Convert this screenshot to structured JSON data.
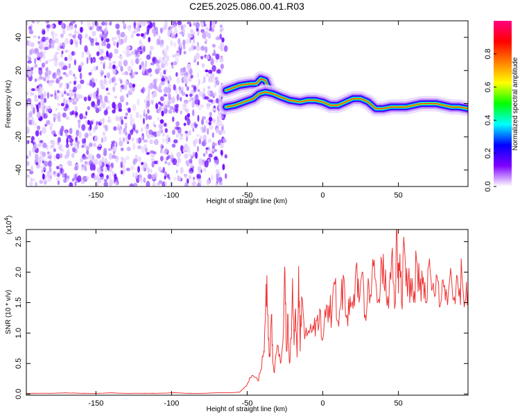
{
  "chart_data": [
    {
      "type": "heatmap",
      "title": "C2E5.2025.086.00.41.R03",
      "xlabel": "Height of straight line (km)",
      "ylabel": "Frequency (Hz)",
      "xlim": [
        -196,
        96
      ],
      "ylim": [
        -50,
        50
      ],
      "x_ticks": [
        -150,
        -100,
        -50,
        0,
        50
      ],
      "y_ticks": [
        -40,
        -20,
        0,
        20,
        40
      ],
      "grid": false,
      "noise_region_x": [
        -196,
        -64
      ],
      "ridges": [
        {
          "name": "",
          "points": [
            [
              -64,
              8
            ],
            [
              -55,
              11
            ],
            [
              -48,
              12
            ],
            [
              -44,
              12
            ],
            [
              -41,
              15
            ],
            [
              -38,
              14
            ],
            [
              -35,
              7
            ]
          ]
        },
        {
          "name": "",
          "points": [
            [
              -64,
              -2
            ],
            [
              -58,
              -1
            ],
            [
              -52,
              1
            ],
            [
              -46,
              3
            ],
            [
              -42,
              6
            ],
            [
              -38,
              7
            ],
            [
              -33,
              6
            ],
            [
              -28,
              4
            ],
            [
              -22,
              2
            ],
            [
              -15,
              1
            ],
            [
              -10,
              2
            ],
            [
              -5,
              2
            ],
            [
              0,
              1
            ],
            [
              5,
              -1
            ],
            [
              10,
              -1
            ],
            [
              15,
              1
            ],
            [
              20,
              3
            ],
            [
              25,
              3
            ],
            [
              30,
              1
            ],
            [
              35,
              -3
            ],
            [
              40,
              -3
            ],
            [
              45,
              -2
            ],
            [
              50,
              -2
            ],
            [
              55,
              -2
            ],
            [
              60,
              -1
            ],
            [
              65,
              0
            ],
            [
              70,
              0
            ],
            [
              75,
              0
            ],
            [
              80,
              -1
            ],
            [
              85,
              -2
            ],
            [
              90,
              -2
            ],
            [
              96,
              -3
            ]
          ]
        }
      ],
      "colorbar": {
        "label": "Normalized spectral amplitude",
        "range": [
          0,
          1
        ],
        "ticks": [
          "0.0",
          "0.2",
          "0.4",
          "0.6",
          "0.8"
        ],
        "colors": [
          "#ffffff",
          "#8000ff",
          "#0000ff",
          "#00ffff",
          "#00ff00",
          "#ffff00",
          "#ff8000",
          "#ff0000",
          "#ff0080"
        ]
      }
    },
    {
      "type": "line",
      "title": "",
      "xlabel": "Height of straight line (km)",
      "ylabel": "SNR (10 * v/v)",
      "multiplier": "(x10",
      "multiplier_exp": "4",
      "multiplier_close": ")",
      "xlim": [
        -196,
        96
      ],
      "ylim": [
        -0.02,
        2.7
      ],
      "x_ticks": [
        -150,
        -100,
        -50,
        0,
        50
      ],
      "y_ticks": [
        "0.0",
        "0.5",
        "1.0",
        "1.5",
        "2.0",
        "2.5"
      ],
      "grid": false,
      "color": "#ee3333",
      "x": [
        -196,
        -190,
        -180,
        -170,
        -160,
        -150,
        -140,
        -130,
        -120,
        -110,
        -100,
        -90,
        -80,
        -70,
        -60,
        -55,
        -52,
        -49,
        -46,
        -43,
        -41,
        -39,
        -38,
        -37,
        -36,
        -35,
        -34,
        -33,
        -32,
        -30,
        -28,
        -26,
        -25,
        -24,
        -23,
        -22,
        -21,
        -20,
        -19,
        -18,
        -17,
        -16,
        -15,
        -14,
        -12,
        -10,
        -8,
        -6,
        -4,
        -2,
        0,
        2,
        4,
        6,
        8,
        10,
        12,
        14,
        16,
        18,
        20,
        22,
        24,
        26,
        28,
        30,
        32,
        34,
        36,
        38,
        40,
        42,
        44,
        46,
        48,
        49,
        50,
        51,
        52,
        54,
        56,
        58,
        60,
        62,
        64,
        66,
        68,
        70,
        72,
        74,
        76,
        78,
        80,
        82,
        84,
        86,
        88,
        90,
        92,
        94,
        96
      ],
      "values": [
        0.01,
        0.01,
        0.01,
        0.02,
        0.01,
        0.01,
        0.02,
        0.01,
        0.01,
        0.01,
        0.02,
        0.01,
        0.01,
        0.02,
        0.02,
        0.03,
        0.1,
        0.2,
        0.3,
        0.22,
        0.4,
        0.7,
        1.2,
        1.95,
        0.9,
        0.6,
        1.3,
        0.5,
        0.35,
        0.8,
        0.5,
        1.05,
        2.0,
        0.7,
        1.3,
        0.5,
        0.9,
        1.9,
        0.8,
        1.4,
        0.6,
        2.1,
        0.7,
        1.6,
        0.9,
        1.0,
        1.15,
        1.05,
        1.2,
        1.4,
        0.9,
        1.25,
        1.45,
        1.3,
        1.8,
        1.2,
        1.5,
        1.9,
        1.3,
        1.6,
        1.4,
        2.1,
        1.5,
        2.0,
        1.3,
        1.9,
        1.6,
        2.2,
        1.5,
        1.75,
        2.3,
        1.6,
        1.8,
        2.4,
        1.5,
        2.7,
        1.65,
        2.3,
        1.5,
        2.4,
        1.6,
        1.9,
        1.5,
        2.2,
        1.7,
        1.8,
        1.5,
        2.1,
        1.7,
        1.6,
        1.85,
        1.5,
        1.75,
        1.6,
        1.9,
        1.55,
        1.7,
        1.6,
        1.95,
        1.5,
        1.7
      ]
    }
  ]
}
